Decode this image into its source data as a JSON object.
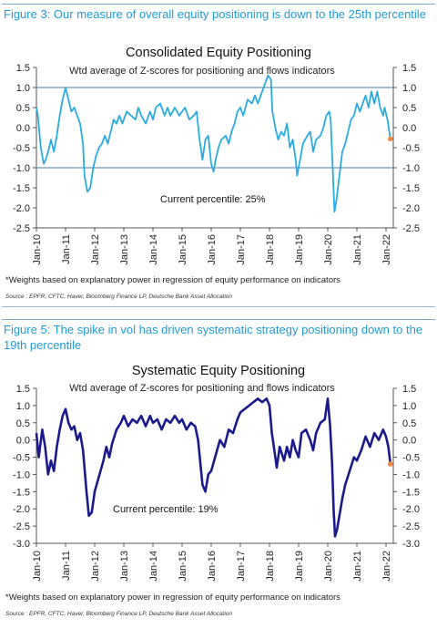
{
  "figures": [
    {
      "caption": "Figure 3: Our measure of overall equity positioning is down to the 25th percentile",
      "footnote": "*Weights based on explanatory power in regression of equity performance on indicators",
      "source": "Source : EPFR, CFTC, Haver, Bloomberg Finance LP, Deutsche Bank Asset Allocation"
    },
    {
      "caption": "Figure 5: The spike in vol has driven systematic strategy positioning down to the 19th percentile",
      "footnote": "*Weights based on explanatory power in regression of equity performance on indicators",
      "source": "Source : EPFR, CFTC, Haver, Bloomberg Finance LP, Deutsche Bank Asset Allocation"
    }
  ],
  "chart_data": [
    {
      "type": "line",
      "title": "Consolidated Equity Positioning",
      "subtitle": "Wtd average of Z-scores for positioning and flows indicators",
      "annotation": "Current percentile: 25%",
      "line_color": "#29abe2",
      "marker_color": "#f08a4b",
      "ylim": [
        -2.5,
        1.5
      ],
      "yticks": [
        "1.5",
        "1.0",
        "0.5",
        "0.0",
        "-0.5",
        "-1.0",
        "-1.5",
        "-2.0",
        "-2.5"
      ],
      "ytick_values": [
        1.5,
        1.0,
        0.5,
        0.0,
        -0.5,
        -1.0,
        -1.5,
        -2.0,
        -2.5
      ],
      "reference_lines": [
        1.0,
        -1.0
      ],
      "xticks": [
        "Jan-10",
        "Jan-11",
        "Jan-12",
        "Jan-13",
        "Jan-14",
        "Jan-15",
        "Jan-16",
        "Jan-17",
        "Jan-18",
        "Jan-19",
        "Jan-20",
        "Jan-21",
        "Jan-22"
      ],
      "xlim": [
        2010.0,
        2022.25
      ],
      "series": [
        {
          "x": [
            2010.0,
            2010.05,
            2010.15,
            2010.25,
            2010.32,
            2010.4,
            2010.5,
            2010.6,
            2010.7,
            2010.8,
            2010.9,
            2011.0,
            2011.1,
            2011.2,
            2011.3,
            2011.4,
            2011.5,
            2011.6,
            2011.65,
            2011.75,
            2011.85,
            2011.95,
            2012.05,
            2012.15,
            2012.25,
            2012.35,
            2012.45,
            2012.55,
            2012.65,
            2012.75,
            2012.85,
            2012.95,
            2013.1,
            2013.25,
            2013.4,
            2013.5,
            2013.6,
            2013.75,
            2013.9,
            2014.0,
            2014.1,
            2014.25,
            2014.4,
            2014.5,
            2014.6,
            2014.75,
            2014.9,
            2015.0,
            2015.1,
            2015.25,
            2015.4,
            2015.5,
            2015.6,
            2015.7,
            2015.8,
            2015.9,
            2016.0,
            2016.08,
            2016.15,
            2016.25,
            2016.35,
            2016.5,
            2016.6,
            2016.7,
            2016.8,
            2016.9,
            2017.0,
            2017.1,
            2017.25,
            2017.4,
            2017.5,
            2017.6,
            2017.75,
            2017.85,
            2017.95,
            2018.05,
            2018.1,
            2018.2,
            2018.3,
            2018.4,
            2018.5,
            2018.6,
            2018.7,
            2018.8,
            2018.9,
            2018.95,
            2019.05,
            2019.15,
            2019.3,
            2019.4,
            2019.5,
            2019.6,
            2019.75,
            2019.85,
            2019.95,
            2020.05,
            2020.1,
            2020.18,
            2020.23,
            2020.3,
            2020.4,
            2020.5,
            2020.6,
            2020.7,
            2020.8,
            2020.9,
            2021.0,
            2021.1,
            2021.2,
            2021.3,
            2021.4,
            2021.5,
            2021.6,
            2021.7,
            2021.8,
            2021.9,
            2021.95,
            2022.05,
            2022.15
          ],
          "y": [
            0.5,
            0.3,
            -0.5,
            -0.9,
            -0.8,
            -0.6,
            -0.3,
            -0.6,
            -0.2,
            0.3,
            0.7,
            1.0,
            0.7,
            0.4,
            0.5,
            0.3,
            0.1,
            -0.4,
            -1.2,
            -1.6,
            -1.5,
            -1.0,
            -0.7,
            -0.5,
            -0.4,
            -0.2,
            -0.4,
            -0.1,
            0.2,
            0.1,
            0.3,
            0.1,
            0.4,
            0.3,
            0.2,
            0.5,
            0.3,
            0.1,
            0.4,
            0.2,
            0.5,
            0.6,
            0.3,
            0.5,
            0.3,
            0.5,
            0.3,
            0.4,
            0.5,
            0.2,
            0.3,
            0.4,
            -0.3,
            -0.8,
            -0.3,
            -0.2,
            -0.9,
            -1.1,
            -0.8,
            -0.5,
            -0.3,
            -0.2,
            -0.4,
            -0.1,
            0.1,
            0.4,
            0.5,
            0.3,
            0.7,
            0.6,
            0.8,
            0.6,
            0.9,
            1.1,
            1.3,
            1.2,
            0.4,
            0.0,
            -0.3,
            -0.1,
            -0.2,
            0.1,
            -0.5,
            -0.3,
            -0.8,
            -1.2,
            -0.8,
            -0.4,
            -0.2,
            -0.1,
            -0.6,
            -0.3,
            -0.2,
            0.0,
            0.3,
            0.4,
            0.2,
            -1.2,
            -2.1,
            -1.8,
            -1.2,
            -0.6,
            -0.4,
            -0.1,
            0.2,
            0.3,
            0.6,
            0.4,
            0.6,
            0.8,
            0.5,
            0.9,
            0.6,
            0.9,
            0.5,
            0.3,
            0.5,
            0.2,
            -0.28
          ]
        }
      ],
      "last_point": {
        "x": 2022.15,
        "y": -0.28
      }
    },
    {
      "type": "line",
      "title": "Systematic Equity Positioning",
      "subtitle": "Wtd average of Z-scores for positioning and flows indicators",
      "annotation": "Current percentile: 19%",
      "line_color": "#1a1a8c",
      "marker_color": "#f08a4b",
      "ylim": [
        -3.0,
        1.5
      ],
      "yticks": [
        "1.5",
        "1.0",
        "0.5",
        "0.0",
        "-0.5",
        "-1.0",
        "-1.5",
        "-2.0",
        "-2.5",
        "-3.0"
      ],
      "ytick_values": [
        1.5,
        1.0,
        0.5,
        0.0,
        -0.5,
        -1.0,
        -1.5,
        -2.0,
        -2.5,
        -3.0
      ],
      "xticks": [
        "Jan-10",
        "Jan-11",
        "Jan-12",
        "Jan-13",
        "Jan-14",
        "Jan-15",
        "Jan-16",
        "Jan-17",
        "Jan-18",
        "Jan-19",
        "Jan-20",
        "Jan-21",
        "Jan-22"
      ],
      "xlim": [
        2010.0,
        2022.25
      ],
      "series": [
        {
          "x": [
            2010.0,
            2010.08,
            2010.2,
            2010.3,
            2010.4,
            2010.5,
            2010.6,
            2010.7,
            2010.8,
            2010.9,
            2011.0,
            2011.1,
            2011.2,
            2011.3,
            2011.4,
            2011.5,
            2011.6,
            2011.65,
            2011.72,
            2011.8,
            2011.9,
            2012.0,
            2012.1,
            2012.2,
            2012.3,
            2012.4,
            2012.5,
            2012.6,
            2012.75,
            2012.9,
            2013.0,
            2013.15,
            2013.3,
            2013.45,
            2013.6,
            2013.75,
            2013.9,
            2014.0,
            2014.15,
            2014.3,
            2014.45,
            2014.6,
            2014.75,
            2014.9,
            2015.0,
            2015.15,
            2015.3,
            2015.45,
            2015.55,
            2015.62,
            2015.7,
            2015.8,
            2015.9,
            2016.0,
            2016.1,
            2016.2,
            2016.3,
            2016.45,
            2016.6,
            2016.75,
            2016.9,
            2017.0,
            2017.15,
            2017.3,
            2017.45,
            2017.6,
            2017.75,
            2017.9,
            2018.0,
            2018.08,
            2018.15,
            2018.25,
            2018.35,
            2018.5,
            2018.6,
            2018.7,
            2018.8,
            2018.9,
            2019.0,
            2019.1,
            2019.25,
            2019.4,
            2019.5,
            2019.6,
            2019.75,
            2019.9,
            2020.0,
            2020.08,
            2020.15,
            2020.2,
            2020.25,
            2020.32,
            2020.4,
            2020.5,
            2020.6,
            2020.75,
            2020.9,
            2021.0,
            2021.15,
            2021.3,
            2021.45,
            2021.6,
            2021.75,
            2021.9,
            2022.0,
            2022.08,
            2022.15
          ],
          "y": [
            0.2,
            -0.5,
            0.3,
            -0.2,
            -1.0,
            -0.6,
            -0.9,
            -0.2,
            0.3,
            0.7,
            0.9,
            0.5,
            0.3,
            0.4,
            0.0,
            0.2,
            -0.3,
            -0.8,
            -1.5,
            -2.2,
            -2.1,
            -1.5,
            -1.2,
            -0.9,
            -0.6,
            -0.2,
            -0.5,
            -0.1,
            0.3,
            0.5,
            0.7,
            0.4,
            0.6,
            0.5,
            0.7,
            0.4,
            0.7,
            0.5,
            0.6,
            0.3,
            0.6,
            0.5,
            0.7,
            0.5,
            0.6,
            0.3,
            0.5,
            0.4,
            0.0,
            -0.6,
            -1.3,
            -1.5,
            -1.0,
            -0.9,
            -0.6,
            -0.3,
            0.0,
            -0.2,
            0.3,
            0.2,
            0.6,
            0.8,
            0.9,
            1.0,
            1.1,
            1.2,
            1.1,
            1.2,
            1.0,
            0.2,
            -0.2,
            -0.8,
            -0.2,
            -0.6,
            -0.2,
            -0.5,
            0.0,
            -0.3,
            -0.5,
            0.2,
            0.3,
            0.0,
            -0.3,
            0.2,
            0.5,
            0.6,
            1.2,
            0.4,
            -0.7,
            -2.0,
            -2.8,
            -2.6,
            -2.2,
            -1.7,
            -1.3,
            -0.9,
            -0.5,
            -0.6,
            -0.3,
            0.1,
            -0.2,
            0.2,
            0.0,
            0.3,
            0.1,
            -0.2,
            -0.7
          ]
        }
      ],
      "last_point": {
        "x": 2022.15,
        "y": -0.7
      }
    }
  ]
}
